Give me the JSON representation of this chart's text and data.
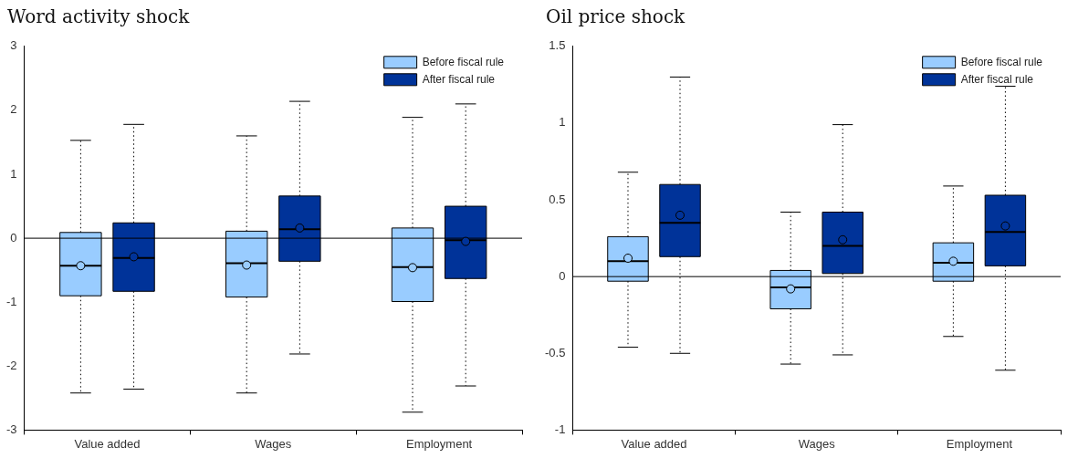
{
  "chart_data": [
    {
      "type": "box",
      "title": "Word activity shock",
      "categories": [
        "Value added",
        "Wages",
        "Employment"
      ],
      "ylim": [
        -3,
        3
      ],
      "yticks": [
        -3,
        -2,
        -1,
        0,
        1,
        2,
        3
      ],
      "legend": "top right",
      "ref_lines": [
        {
          "axis": "y",
          "value": 0,
          "color": "#000000"
        }
      ],
      "series": [
        {
          "name": "Before fiscal rule",
          "color": "#99ccff",
          "boxes": [
            {
              "low": -2.42,
              "q1": -0.9,
              "median": -0.43,
              "q3": 0.09,
              "high": 1.53,
              "mean": -0.43
            },
            {
              "low": -2.42,
              "q1": -0.92,
              "median": -0.39,
              "q3": 0.11,
              "high": 1.6,
              "mean": -0.42
            },
            {
              "low": -2.72,
              "q1": -0.99,
              "median": -0.45,
              "q3": 0.16,
              "high": 1.89,
              "mean": -0.46
            }
          ]
        },
        {
          "name": "After fiscal rule",
          "color": "#003399",
          "boxes": [
            {
              "low": -2.36,
              "q1": -0.83,
              "median": -0.31,
              "q3": 0.24,
              "high": 1.78,
              "mean": -0.29
            },
            {
              "low": -1.81,
              "q1": -0.36,
              "median": 0.14,
              "q3": 0.66,
              "high": 2.14,
              "mean": 0.16
            },
            {
              "low": -2.31,
              "q1": -0.63,
              "median": -0.03,
              "q3": 0.5,
              "high": 2.1,
              "mean": -0.05
            }
          ]
        }
      ]
    },
    {
      "type": "box",
      "title": "Oil price shock",
      "categories": [
        "Value added",
        "Wages",
        "Employment"
      ],
      "ylim": [
        -1,
        1.5
      ],
      "yticks": [
        -1,
        -0.5,
        0,
        0.5,
        1,
        1.5
      ],
      "legend": "top right",
      "ref_lines": [
        {
          "axis": "y",
          "value": 0,
          "color": "#000000"
        }
      ],
      "series": [
        {
          "name": "Before fiscal rule",
          "color": "#99ccff",
          "boxes": [
            {
              "low": -0.46,
              "q1": -0.03,
              "median": 0.1,
              "q3": 0.26,
              "high": 0.68,
              "mean": 0.12
            },
            {
              "low": -0.57,
              "q1": -0.21,
              "median": -0.07,
              "q3": 0.04,
              "high": 0.42,
              "mean": -0.08
            },
            {
              "low": -0.39,
              "q1": -0.03,
              "median": 0.09,
              "q3": 0.22,
              "high": 0.59,
              "mean": 0.1
            }
          ]
        },
        {
          "name": "After fiscal rule",
          "color": "#003399",
          "boxes": [
            {
              "low": -0.5,
              "q1": 0.13,
              "median": 0.35,
              "q3": 0.6,
              "high": 1.3,
              "mean": 0.4
            },
            {
              "low": -0.51,
              "q1": 0.02,
              "median": 0.2,
              "q3": 0.42,
              "high": 0.99,
              "mean": 0.24
            },
            {
              "low": -0.61,
              "q1": 0.07,
              "median": 0.29,
              "q3": 0.53,
              "high": 1.24,
              "mean": 0.33
            }
          ]
        }
      ]
    }
  ]
}
